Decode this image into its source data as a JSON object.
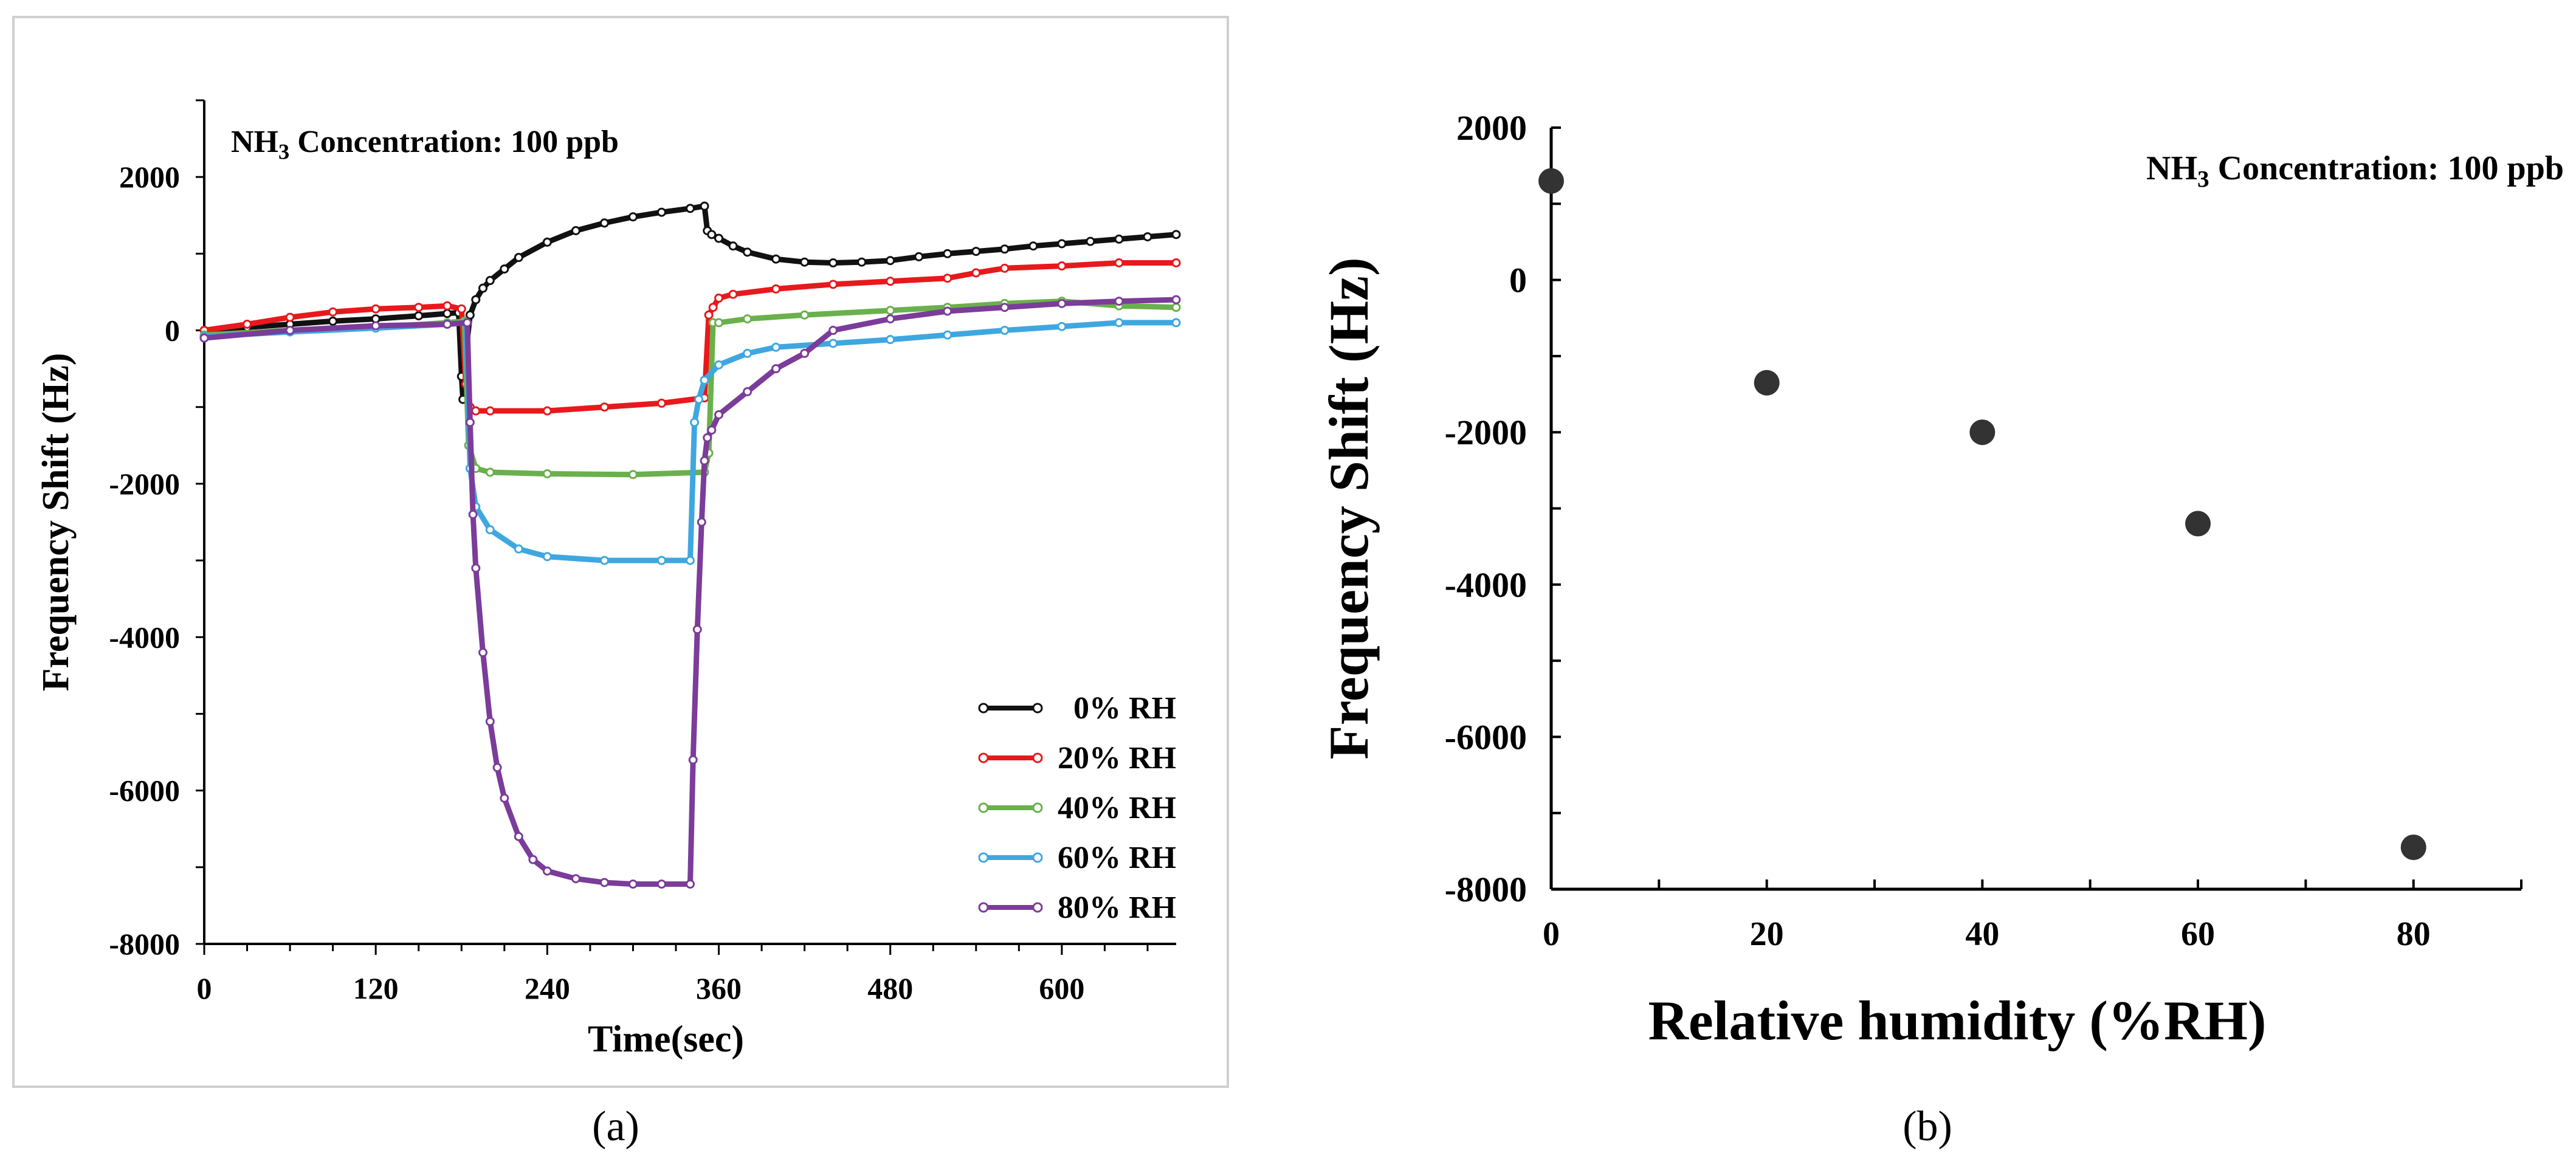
{
  "chart_data": [
    {
      "panel_label": "a",
      "type": "line",
      "annotation": "NH3 Concentration: 100 ppb",
      "annotation_formula": {
        "base": "NH",
        "sub": "3",
        "rest": " Concentration: 100 ppb"
      },
      "xlabel": "Time(sec)",
      "ylabel": "Frequency Shift (Hz)",
      "xlim": [
        0,
        680
      ],
      "ylim": [
        -8000,
        3000
      ],
      "xticks": [
        0,
        120,
        240,
        360,
        480,
        600
      ],
      "yticks": [
        2000,
        0,
        -2000,
        -4000,
        -6000,
        -8000
      ],
      "legend_position": "bottom-right",
      "series": [
        {
          "name": "0% RH",
          "color": "#111111",
          "x": [
            0,
            30,
            60,
            90,
            120,
            150,
            170,
            178,
            180,
            181,
            183,
            186,
            190,
            195,
            200,
            210,
            220,
            240,
            260,
            280,
            300,
            320,
            340,
            350,
            352,
            355,
            360,
            370,
            380,
            400,
            420,
            440,
            460,
            480,
            500,
            520,
            540,
            560,
            580,
            600,
            620,
            640,
            660,
            680
          ],
          "y": [
            0,
            40,
            80,
            120,
            150,
            190,
            220,
            230,
            -600,
            -900,
            -300,
            200,
            400,
            550,
            650,
            800,
            950,
            1150,
            1300,
            1400,
            1480,
            1540,
            1590,
            1620,
            1300,
            1250,
            1200,
            1100,
            1020,
            930,
            890,
            880,
            890,
            910,
            960,
            1000,
            1030,
            1060,
            1100,
            1130,
            1160,
            1190,
            1220,
            1250
          ]
        },
        {
          "name": "20% RH",
          "color": "#e8191c",
          "x": [
            0,
            30,
            60,
            90,
            120,
            150,
            170,
            180,
            183,
            186,
            190,
            200,
            240,
            280,
            320,
            350,
            353,
            356,
            360,
            370,
            400,
            440,
            480,
            520,
            540,
            560,
            600,
            640,
            680
          ],
          "y": [
            0,
            80,
            170,
            240,
            280,
            300,
            320,
            280,
            -700,
            -1000,
            -1050,
            -1050,
            -1050,
            -1000,
            -950,
            -880,
            200,
            300,
            420,
            470,
            540,
            600,
            640,
            680,
            750,
            810,
            840,
            880,
            880
          ]
        },
        {
          "name": "40% RH",
          "color": "#6ab04c",
          "x": [
            0,
            60,
            120,
            170,
            182,
            185,
            190,
            200,
            240,
            300,
            350,
            353,
            356,
            360,
            380,
            420,
            480,
            520,
            560,
            600,
            640,
            680
          ],
          "y": [
            -60,
            0,
            40,
            100,
            120,
            -1500,
            -1800,
            -1850,
            -1870,
            -1880,
            -1850,
            -1600,
            100,
            100,
            150,
            200,
            260,
            300,
            350,
            380,
            320,
            300
          ]
        },
        {
          "name": "60% RH",
          "color": "#3fa7e0",
          "x": [
            0,
            60,
            120,
            170,
            183,
            186,
            190,
            200,
            220,
            240,
            280,
            320,
            340,
            343,
            346,
            350,
            360,
            380,
            400,
            440,
            480,
            520,
            560,
            600,
            640,
            680
          ],
          "y": [
            -80,
            -20,
            30,
            80,
            100,
            -1800,
            -2300,
            -2600,
            -2850,
            -2950,
            -3000,
            -3000,
            -3000,
            -1200,
            -900,
            -650,
            -450,
            -300,
            -220,
            -170,
            -120,
            -60,
            0,
            50,
            100,
            100
          ]
        },
        {
          "name": "80% RH",
          "color": "#7b3c9a",
          "x": [
            0,
            60,
            120,
            170,
            184,
            186,
            188,
            190,
            195,
            200,
            205,
            210,
            220,
            230,
            240,
            260,
            280,
            300,
            320,
            340,
            342,
            345,
            348,
            350,
            352,
            355,
            360,
            380,
            400,
            420,
            440,
            480,
            520,
            560,
            600,
            640,
            680
          ],
          "y": [
            -100,
            0,
            60,
            80,
            100,
            -1200,
            -2400,
            -3100,
            -4200,
            -5100,
            -5700,
            -6100,
            -6600,
            -6900,
            -7050,
            -7150,
            -7200,
            -7220,
            -7220,
            -7220,
            -5600,
            -3900,
            -2500,
            -1700,
            -1400,
            -1300,
            -1100,
            -800,
            -500,
            -300,
            0,
            150,
            250,
            300,
            350,
            380,
            400
          ]
        }
      ]
    },
    {
      "panel_label": "b",
      "type": "scatter",
      "annotation": "NH3 Concentration: 100 ppb",
      "annotation_formula": {
        "base": "NH",
        "sub": "3",
        "rest": " Concentration: 100 ppb"
      },
      "xlabel": "Relative humidity (%RH)",
      "ylabel": "Frequency Shift (Hz)",
      "xlim": [
        0,
        90
      ],
      "ylim": [
        -8000,
        2000
      ],
      "xticks": [
        0,
        20,
        40,
        60,
        80
      ],
      "yticks": [
        2000,
        0,
        -2000,
        -4000,
        -6000,
        -8000
      ],
      "grid": false,
      "color": "#333333",
      "x": [
        0,
        20,
        40,
        60,
        80
      ],
      "y": [
        1300,
        -1350,
        -2000,
        -3200,
        -7450
      ]
    }
  ],
  "captions": {
    "a": "(a)",
    "b": "(b)"
  }
}
